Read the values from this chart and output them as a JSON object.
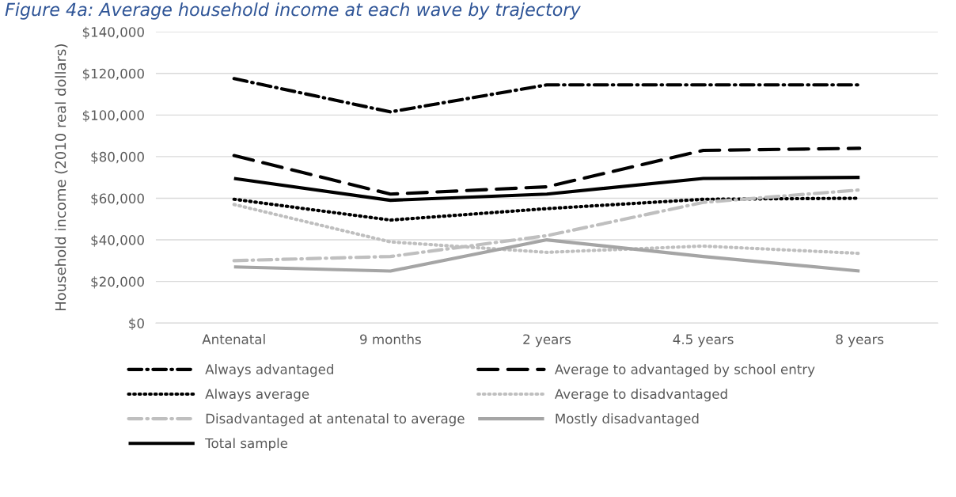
{
  "chart_data": {
    "type": "line",
    "title": "Figure 4a: Average household income at each wave by trajectory",
    "ylabel": "Household income (2010 real dollars)",
    "categories": [
      "Antenatal",
      "9 months",
      "2 years",
      "4.5 years",
      "8 years"
    ],
    "series": [
      {
        "name": "Always advantaged",
        "color": "#000000",
        "line_style": "dashdot",
        "values": [
          117500,
          101500,
          114500,
          114500,
          114500
        ]
      },
      {
        "name": "Average to advantaged by school entry",
        "color": "#000000",
        "line_style": "dashed",
        "values": [
          80500,
          62000,
          65500,
          83000,
          84000
        ]
      },
      {
        "name": "Always average",
        "color": "#000000",
        "line_style": "dotted",
        "values": [
          59500,
          49500,
          55000,
          59500,
          60000
        ]
      },
      {
        "name": "Average to disadvantaged",
        "color": "#bfbfbf",
        "line_style": "dotted",
        "values": [
          57000,
          39000,
          34000,
          37000,
          33500
        ]
      },
      {
        "name": "Disadvantaged at antenatal to average",
        "color": "#bfbfbf",
        "line_style": "dashdot",
        "values": [
          30000,
          32000,
          42000,
          58000,
          64000
        ]
      },
      {
        "name": "Mostly disadvantaged",
        "color": "#a5a5a5",
        "line_style": "solid",
        "values": [
          27000,
          25000,
          40000,
          32000,
          25000
        ]
      },
      {
        "name": "Total sample",
        "color": "#000000",
        "line_style": "solid",
        "values": [
          69500,
          59000,
          62000,
          69500,
          70000
        ]
      }
    ],
    "ylim": [
      0,
      140000
    ],
    "yticks": [
      {
        "value": 0,
        "label": "$0"
      },
      {
        "value": 20000,
        "label": "$20,000"
      },
      {
        "value": 40000,
        "label": "$40,000"
      },
      {
        "value": 60000,
        "label": "$60,000"
      },
      {
        "value": 80000,
        "label": "$80,000"
      },
      {
        "value": 100000,
        "label": "$100,000"
      },
      {
        "value": 120000,
        "label": "$120,000"
      },
      {
        "value": 140000,
        "label": "$140,000"
      }
    ],
    "grid": "y",
    "legend": "bottom",
    "marker": "none"
  }
}
